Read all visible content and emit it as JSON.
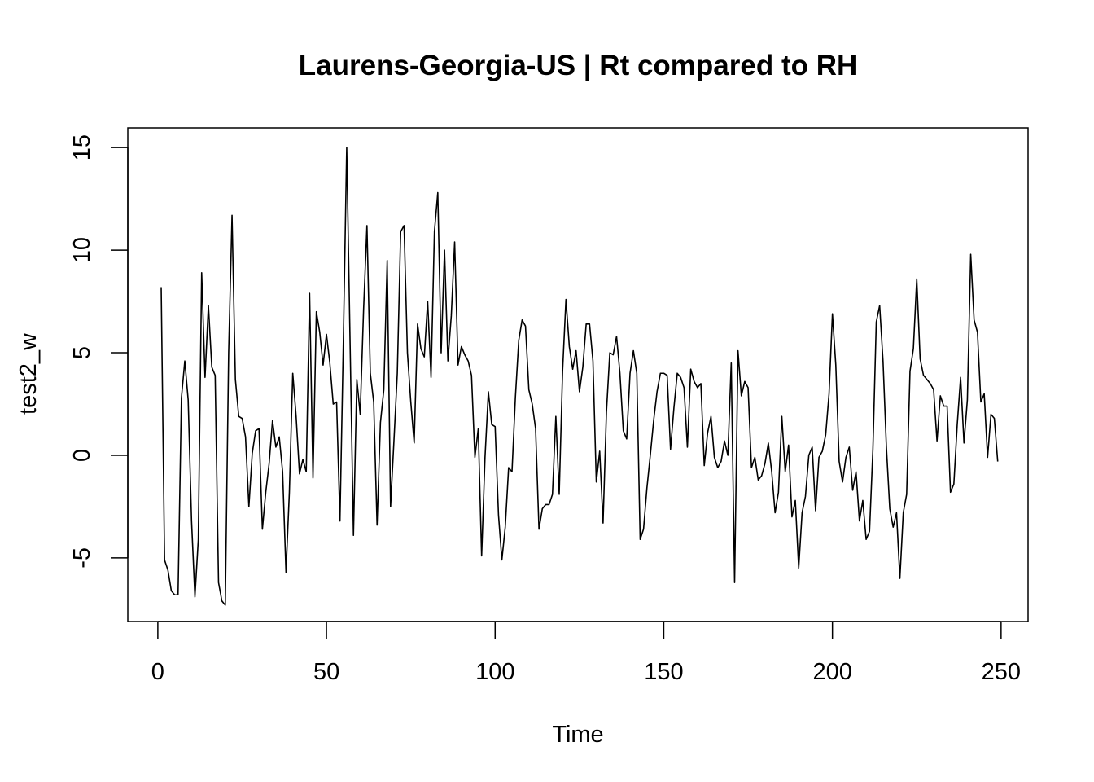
{
  "chart_data": {
    "type": "line",
    "title": "Laurens-Georgia-US | Rt compared to RH",
    "xlabel": "Time",
    "ylabel": "test2_w",
    "xlim": [
      -8.9,
      258
    ],
    "ylim": [
      -8.1,
      15.96
    ],
    "x_ticks": [
      0,
      50,
      100,
      150,
      200,
      250
    ],
    "x_tick_labels": [
      "0",
      "50",
      "100",
      "150",
      "200",
      "250"
    ],
    "y_ticks": [
      -5,
      0,
      5,
      10,
      15
    ],
    "y_tick_labels": [
      "-5",
      "0",
      "5",
      "10",
      "15"
    ],
    "grid": false,
    "series": [
      {
        "color": "#000000",
        "x_start": 1,
        "values": [
          8.2,
          -5.1,
          -5.6,
          -6.6,
          -6.8,
          -6.8,
          2.8,
          4.6,
          2.7,
          -3.2,
          -6.9,
          -4.1,
          8.9,
          3.8,
          7.3,
          4.3,
          3.9,
          -6.2,
          -7.1,
          -7.3,
          5.0,
          11.7,
          3.7,
          1.9,
          1.8,
          0.9,
          -2.5,
          0.1,
          1.2,
          1.3,
          -3.6,
          -1.8,
          -0.4,
          1.7,
          0.4,
          0.9,
          -0.8,
          -5.7,
          -1.8,
          4.0,
          1.9,
          -0.9,
          -0.2,
          -0.8,
          7.9,
          -1.1,
          7.0,
          6.0,
          4.4,
          5.9,
          4.5,
          2.5,
          2.6,
          -3.2,
          5.5,
          15.0,
          5.5,
          -3.9,
          3.7,
          2.0,
          7.1,
          11.2,
          4.0,
          2.6,
          -3.4,
          1.6,
          3.2,
          9.5,
          -2.5,
          0.7,
          4.0,
          10.9,
          11.2,
          5.0,
          2.6,
          0.6,
          6.4,
          5.2,
          4.8,
          7.5,
          3.8,
          10.9,
          12.8,
          5.0,
          10.0,
          4.6,
          6.8,
          10.4,
          4.4,
          5.3,
          4.9,
          4.6,
          3.9,
          -0.1,
          1.3,
          -4.9,
          -0.1,
          3.1,
          1.5,
          1.4,
          -2.9,
          -5.1,
          -3.5,
          -0.6,
          -0.8,
          2.8,
          5.6,
          6.6,
          6.3,
          3.2,
          2.5,
          1.3,
          -3.6,
          -2.6,
          -2.4,
          -2.4,
          -1.9,
          1.9,
          -1.9,
          4.1,
          7.6,
          5.3,
          4.2,
          5.1,
          3.1,
          4.3,
          6.4,
          6.4,
          4.6,
          -1.3,
          0.2,
          -3.3,
          2.1,
          5.0,
          4.9,
          5.8,
          4.0,
          1.2,
          0.8,
          4.0,
          5.1,
          4.0,
          -4.1,
          -3.6,
          -1.6,
          0.0,
          1.7,
          3.1,
          4.0,
          4.0,
          3.9,
          0.3,
          2.3,
          4.0,
          3.8,
          3.3,
          0.4,
          4.2,
          3.6,
          3.3,
          3.5,
          -0.5,
          1.1,
          1.9,
          -0.1,
          -0.6,
          -0.3,
          0.7,
          0.0,
          4.5,
          -6.2,
          5.1,
          2.9,
          3.6,
          3.3,
          -0.6,
          -0.1,
          -1.2,
          -1.0,
          -0.4,
          0.6,
          -0.8,
          -2.8,
          -1.8,
          1.9,
          -0.8,
          0.5,
          -3.0,
          -2.2,
          -5.5,
          -2.8,
          -2.0,
          0.0,
          0.4,
          -2.7,
          -0.1,
          0.2,
          1.0,
          3.0,
          6.9,
          4.4,
          -0.3,
          -1.3,
          -0.1,
          0.4,
          -1.7,
          -0.8,
          -3.2,
          -2.2,
          -4.1,
          -3.7,
          0.3,
          6.5,
          7.3,
          4.6,
          0.4,
          -2.6,
          -3.5,
          -2.8,
          -6.0,
          -2.8,
          -1.9,
          4.1,
          5.2,
          8.6,
          4.7,
          3.9,
          3.7,
          3.5,
          3.2,
          0.7,
          2.9,
          2.4,
          2.4,
          -1.8,
          -1.4,
          1.5,
          3.8,
          0.6,
          2.7,
          9.8,
          6.6,
          6.0,
          2.6,
          3.0,
          -0.1,
          2.0,
          1.8,
          -0.3
        ]
      }
    ]
  }
}
